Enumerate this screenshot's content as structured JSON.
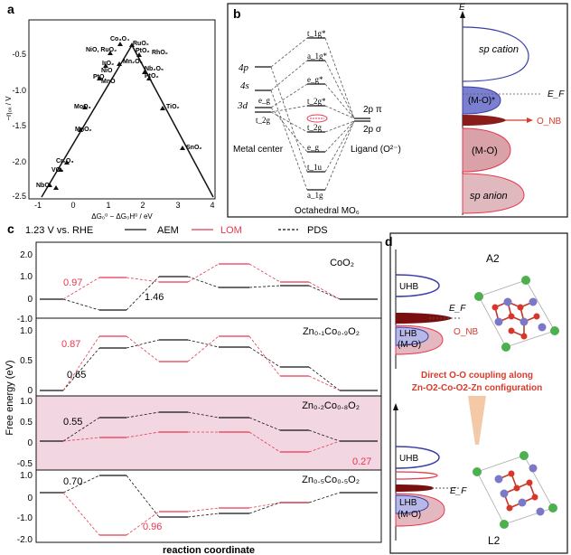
{
  "panel_a": {
    "letter": "a",
    "ylabel": "−η₀ₓ / V",
    "xlabel": "ΔG₀⁰ − ΔG₀H⁰ / eV",
    "xticks": [
      "-1",
      "0",
      "1",
      "2",
      "3",
      "4"
    ],
    "yticks": [
      "-0.5",
      "-1.0",
      "-1.5",
      "-2.0",
      "-2.5"
    ],
    "labels": [
      "Co₃O₄",
      "RuO₂",
      "NiO, RuO₂",
      "PtO₂",
      "RhO₂",
      "IrO₂",
      "Mn₂O₃",
      "NiO",
      "PtO",
      "MnO",
      "Nb₂O₅",
      "PtO₂",
      "MoO₃",
      "TiO₂",
      "SnO₂",
      "Cr₂O₃",
      "VO₂",
      "NbO",
      "MnO₂",
      "SnO₂"
    ]
  },
  "panel_b": {
    "letter": "b",
    "orbitals_left": [
      "4p",
      "4s",
      "3d",
      "e_g",
      "t_2g"
    ],
    "orbitals_mid": [
      "t_1g*",
      "a_1g*",
      "e_g*",
      "t_2g*",
      "t_2g",
      "e_g",
      "t_1u",
      "a_1g"
    ],
    "ligand_labels": [
      "2p π",
      "2p σ"
    ],
    "metal_center": "Metal center",
    "octahedral": "Octahedral MO₆",
    "ligand": "Ligand (O²⁻)",
    "energy_axis": "E",
    "dos_labels": [
      "sp cation",
      "(M-O)*",
      "E_F",
      "O_NB",
      "(M-O)",
      "sp anion"
    ]
  },
  "panel_c": {
    "letter": "c",
    "legend_title": "1.23 V vs. RHE",
    "legend": [
      {
        "name": "AEM",
        "color": "#111111"
      },
      {
        "name": "LOM",
        "color": "#e8384f"
      },
      {
        "name": "PDS",
        "color": "#111111"
      }
    ],
    "ylabel": "Free energy (eV)",
    "xlabel": "reaction coordinate",
    "subplots": [
      {
        "name": "CoO₂",
        "yticks": [
          "2.0",
          "1.0",
          "0",
          "-1.0"
        ],
        "annotations": [
          "0.97",
          "1.46"
        ]
      },
      {
        "name": "Zn₀.₁Co₀.₉O₂",
        "yticks": [
          "1.0",
          "0.5",
          "0"
        ],
        "annotations": [
          "0.87",
          "0.65"
        ]
      },
      {
        "name": "Zn₀.₂Co₀.₈O₂",
        "yticks": [
          "1.0",
          "0.5",
          "0",
          "-0.5"
        ],
        "annotations": [
          "0.55",
          "0.27"
        ]
      },
      {
        "name": "Zn₀.₅Co₀.₅O₂",
        "yticks": [
          "1.0",
          "0",
          "-1.0",
          "-2.0"
        ],
        "annotations": [
          "0.70",
          "0.96"
        ]
      }
    ]
  },
  "panel_d": {
    "letter": "d",
    "top_label": "A2",
    "bottom_label": "L2",
    "band_labels": [
      "UHB",
      "LHB",
      "(M-O)",
      "E_F",
      "O_NB"
    ],
    "caption_line1": "Direct O-O coupling along",
    "caption_line2": "Zn-O2-Co-O2-Zn configuration",
    "colors": {
      "uhb": "#3a3fa8",
      "lhb": "#e8384f",
      "accent": "#d93a2b",
      "purple": "#6b62c2",
      "red_atom": "#d9362b",
      "green_atom": "#4cb04c",
      "blue_atom": "#7b78c8"
    }
  }
}
